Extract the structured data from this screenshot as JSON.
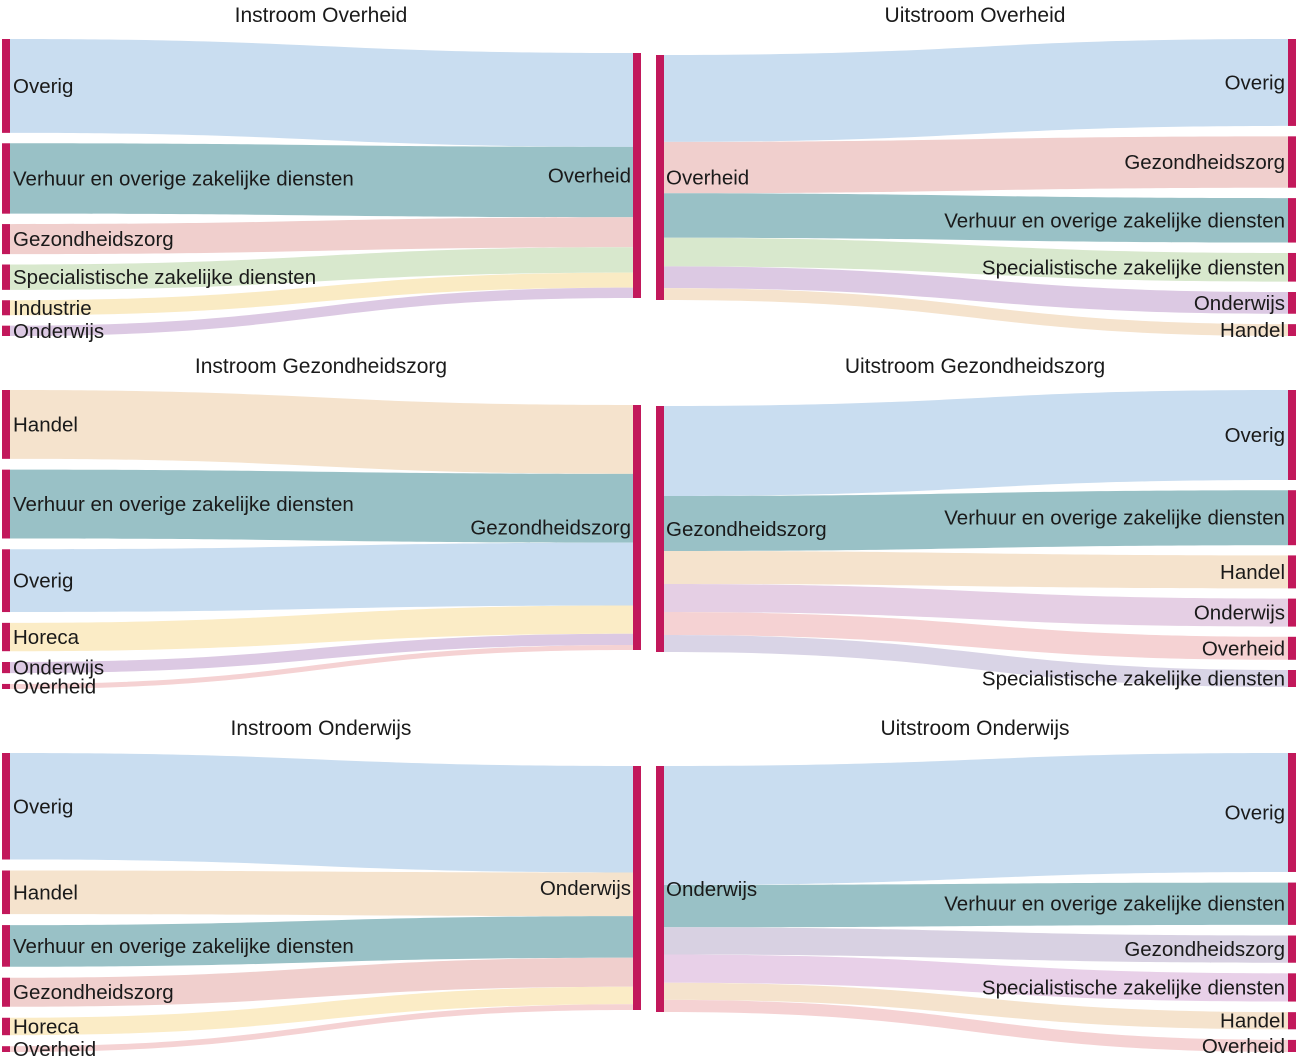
{
  "colors": {
    "node": "#c2185b",
    "Overig": "#c9ddf0",
    "Verhuur en overige zakelijke diensten": "#99c1c6",
    "Gezondheidszorg": "#f0cfcd",
    "Specialistische zakelijke diensten": "#d8e8cd",
    "Industrie": "#faebc4",
    "Onderwijs": "#dcc9e3",
    "Handel": "#f5e3cd",
    "Horeca": "#fbecc6",
    "Overheid": "#f5d2d3",
    "Gezondheidszorg_onderwijs_uit": "#d8d1e2",
    "Specialistische_onderwijs_uit": "#e8d0e8",
    "Onderwijs_gz_uit": "#e5cfe4",
    "Specialistische_gz_uit": "#d9d4e6"
  },
  "panels": [
    {
      "id": "instroom-overheid",
      "direction": "in",
      "title": "Instroom Overheid",
      "center": "Overheid",
      "flows": [
        {
          "label": "Overig",
          "value": 100
        },
        {
          "label": "Verhuur en overige zakelijke diensten",
          "value": 75
        },
        {
          "label": "Gezondheidszorg",
          "value": 32
        },
        {
          "label": "Specialistische zakelijke diensten",
          "value": 27
        },
        {
          "label": "Industrie",
          "value": 16
        },
        {
          "label": "Onderwijs",
          "value": 11
        }
      ]
    },
    {
      "id": "uitstroom-overheid",
      "direction": "out",
      "title": "Uitstroom Overheid",
      "center": "Overheid",
      "flows": [
        {
          "label": "Overig",
          "value": 88
        },
        {
          "label": "Gezondheidszorg",
          "value": 52
        },
        {
          "label": "Verhuur en overige zakelijke diensten",
          "value": 45
        },
        {
          "label": "Specialistische zakelijke diensten",
          "value": 29
        },
        {
          "label": "Onderwijs",
          "value": 22
        },
        {
          "label": "Handel",
          "value": 12
        }
      ]
    },
    {
      "id": "instroom-gezondheidszorg",
      "direction": "in",
      "title": "Instroom Gezondheidszorg",
      "center": "Gezondheidszorg",
      "flows": [
        {
          "label": "Handel",
          "value": 68
        },
        {
          "label": "Verhuur en overige zakelijke diensten",
          "value": 68
        },
        {
          "label": "Overig",
          "value": 62
        },
        {
          "label": "Horeca",
          "value": 28
        },
        {
          "label": "Onderwijs",
          "value": 11
        },
        {
          "label": "Overheid",
          "value": 5
        }
      ]
    },
    {
      "id": "uitstroom-gezondheidszorg",
      "direction": "out",
      "title": "Uitstroom Gezondheidszorg",
      "center": "Gezondheidszorg",
      "flows": [
        {
          "label": "Overig",
          "value": 90
        },
        {
          "label": "Verhuur en overige zakelijke diensten",
          "value": 55
        },
        {
          "label": "Handel",
          "value": 33
        },
        {
          "label": "Onderwijs",
          "value": 28
        },
        {
          "label": "Overheid",
          "value": 23
        },
        {
          "label": "Specialistische zakelijke diensten",
          "value": 17
        }
      ]
    },
    {
      "id": "instroom-onderwijs",
      "direction": "in",
      "title": "Instroom Onderwijs",
      "center": "Onderwijs",
      "flows": [
        {
          "label": "Overig",
          "value": 110
        },
        {
          "label": "Handel",
          "value": 45
        },
        {
          "label": "Verhuur en overige zakelijke diensten",
          "value": 43
        },
        {
          "label": "Gezondheidszorg",
          "value": 30
        },
        {
          "label": "Horeca",
          "value": 18
        },
        {
          "label": "Overheid",
          "value": 6
        }
      ]
    },
    {
      "id": "uitstroom-onderwijs",
      "direction": "out",
      "title": "Uitstroom Onderwijs",
      "center": "Onderwijs",
      "flows": [
        {
          "label": "Overig",
          "value": 118
        },
        {
          "label": "Verhuur en overige zakelijke diensten",
          "value": 42
        },
        {
          "label": "Gezondheidszorg",
          "value": 27
        },
        {
          "label": "Specialistische zakelijke diensten",
          "value": 28
        },
        {
          "label": "Handel",
          "value": 17
        },
        {
          "label": "Overheid",
          "value": 12
        }
      ]
    }
  ]
}
